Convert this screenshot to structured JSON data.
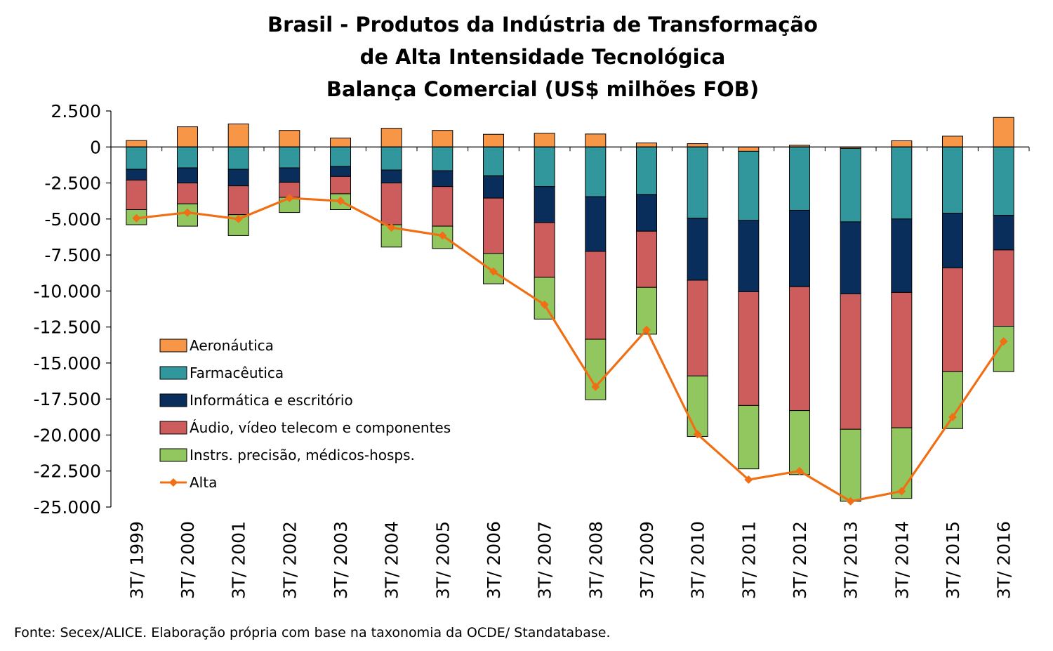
{
  "chart_data": {
    "type": "bar",
    "stacked": true,
    "title_lines": [
      "Brasil - Produtos da Indústria de Transformação",
      "de Alta Intensidade Tecnológica",
      "Balança Comercial (US$ milhões FOB)"
    ],
    "categories": [
      "3T/ 1999",
      "3T/ 2000",
      "3T/ 2001",
      "3T/ 2002",
      "3T/ 2003",
      "3T/ 2004",
      "3T/ 2005",
      "3T/ 2006",
      "3T/ 2007",
      "3T/ 2008",
      "3T/ 2009",
      "3T/ 2010",
      "3T/ 2011",
      "3T/ 2012",
      "3T/ 2013",
      "3T/ 2014",
      "3T/ 2015",
      "3T/ 2016"
    ],
    "ylim": [
      -25000,
      2500
    ],
    "yticks": [
      2500,
      0,
      -2500,
      -5000,
      -7500,
      -10000,
      -12500,
      -15000,
      -17500,
      -20000,
      -22500,
      -25000
    ],
    "ytick_labels": [
      "2.500",
      "0",
      "-2.500",
      "-5.000",
      "-7.500",
      "-10.000",
      "-12.500",
      "-15.000",
      "-17.500",
      "-20.000",
      "-22.500",
      "-25.000"
    ],
    "series": [
      {
        "name": "Aeronáutica",
        "color": "#f79646",
        "values": [
          450,
          1400,
          1600,
          1150,
          620,
          1300,
          1150,
          880,
          950,
          900,
          280,
          230,
          -300,
          120,
          -100,
          430,
          750,
          2050
        ]
      },
      {
        "name": "Farmacêutica",
        "color": "#31979c",
        "values": [
          -1550,
          -1450,
          -1550,
          -1450,
          -1350,
          -1600,
          -1650,
          -2000,
          -2750,
          -3450,
          -3300,
          -4950,
          -4800,
          -4400,
          -5100,
          -5000,
          -4600,
          -4750
        ]
      },
      {
        "name": "Informática e escritório",
        "color": "#0a2e5c",
        "values": [
          -750,
          -1050,
          -1150,
          -1000,
          -700,
          -900,
          -1100,
          -1550,
          -2500,
          -3800,
          -2550,
          -4300,
          -4950,
          -5300,
          -5000,
          -5100,
          -3800,
          -2400
        ]
      },
      {
        "name": "Áudio, vídeo telecom e componentes",
        "color": "#cd5c5c",
        "values": [
          -2050,
          -1450,
          -2000,
          -1050,
          -1200,
          -2900,
          -2750,
          -3850,
          -3800,
          -6100,
          -3900,
          -6650,
          -7900,
          -8600,
          -9400,
          -9400,
          -7200,
          -5300
        ]
      },
      {
        "name": "Instrs. precisão, médicos-hosps.",
        "color": "#92c760",
        "values": [
          -1050,
          -1550,
          -1450,
          -1050,
          -1100,
          -1550,
          -1550,
          -2100,
          -2900,
          -4200,
          -3250,
          -4200,
          -4400,
          -4450,
          -5000,
          -4900,
          -3950,
          -3150
        ]
      }
    ],
    "line_series": {
      "name": "Alta",
      "color": "#f06f14",
      "values": [
        -4950,
        -4550,
        -5000,
        -3550,
        -3750,
        -5600,
        -6150,
        -8650,
        -10950,
        -16650,
        -12700,
        -19950,
        -23100,
        -22500,
        -24600,
        -23900,
        -18750,
        -13500
      ]
    },
    "legend_order": [
      "Aeronáutica",
      "Farmacêutica",
      "Informática e escritório",
      "Áudio, vídeo telecom e componentes",
      "Instrs. precisão, médicos-hosps.",
      "Alta"
    ],
    "legend_position": "lower-left inside plot"
  },
  "source_note": "Fonte: Secex/ALICE. Elaboração própria com base na taxonomia da OCDE/ Standatabase."
}
